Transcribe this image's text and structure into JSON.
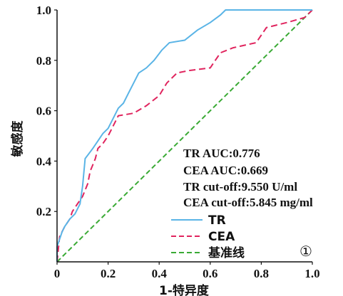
{
  "chart_data": {
    "type": "line",
    "xlabel": "1-特异度",
    "ylabel": "敏感度",
    "xlim": [
      0,
      1
    ],
    "ylim": [
      0,
      1
    ],
    "x_ticks": [
      "0",
      "0.2",
      "0.4",
      "0.6",
      "0.8",
      "1.0"
    ],
    "y_ticks": [
      "0.2",
      "0.4",
      "0.6",
      "0.8",
      "1.0"
    ],
    "grid": false,
    "legend_position": "bottom-right",
    "annotations": [
      "TR AUC:0.776",
      "CEA AUC:0.669",
      "TR cut-off:9.550 U/ml",
      "CEA cut-off:5.845 mg/ml"
    ],
    "panel_label": "①",
    "series": [
      {
        "name": "TR",
        "color": "#5ab4e6",
        "dash": "solid",
        "points": [
          [
            0,
            0
          ],
          [
            0,
            0.06
          ],
          [
            0.01,
            0.09
          ],
          [
            0.02,
            0.12
          ],
          [
            0.03,
            0.14
          ],
          [
            0.05,
            0.17
          ],
          [
            0.07,
            0.19
          ],
          [
            0.09,
            0.23
          ],
          [
            0.1,
            0.3
          ],
          [
            0.11,
            0.41
          ],
          [
            0.14,
            0.45
          ],
          [
            0.16,
            0.48
          ],
          [
            0.18,
            0.51
          ],
          [
            0.2,
            0.53
          ],
          [
            0.22,
            0.57
          ],
          [
            0.24,
            0.61
          ],
          [
            0.26,
            0.63
          ],
          [
            0.28,
            0.67
          ],
          [
            0.3,
            0.71
          ],
          [
            0.32,
            0.75
          ],
          [
            0.35,
            0.77
          ],
          [
            0.38,
            0.8
          ],
          [
            0.41,
            0.84
          ],
          [
            0.44,
            0.87
          ],
          [
            0.5,
            0.88
          ],
          [
            0.55,
            0.92
          ],
          [
            0.6,
            0.95
          ],
          [
            0.64,
            0.98
          ],
          [
            0.66,
            1.0
          ],
          [
            1.0,
            1.0
          ]
        ]
      },
      {
        "name": "CEA",
        "color": "#e0245e",
        "dash": "dashed",
        "points": [
          [
            0,
            0
          ],
          [
            0.01,
            0.1
          ],
          [
            0.03,
            0.14
          ],
          [
            0.05,
            0.17
          ],
          [
            0.06,
            0.2
          ],
          [
            0.08,
            0.23
          ],
          [
            0.1,
            0.26
          ],
          [
            0.12,
            0.31
          ],
          [
            0.13,
            0.36
          ],
          [
            0.15,
            0.41
          ],
          [
            0.16,
            0.45
          ],
          [
            0.18,
            0.47
          ],
          [
            0.2,
            0.5
          ],
          [
            0.22,
            0.54
          ],
          [
            0.24,
            0.58
          ],
          [
            0.3,
            0.59
          ],
          [
            0.35,
            0.62
          ],
          [
            0.4,
            0.66
          ],
          [
            0.43,
            0.71
          ],
          [
            0.45,
            0.73
          ],
          [
            0.47,
            0.75
          ],
          [
            0.52,
            0.76
          ],
          [
            0.6,
            0.77
          ],
          [
            0.64,
            0.83
          ],
          [
            0.69,
            0.85
          ],
          [
            0.78,
            0.87
          ],
          [
            0.82,
            0.93
          ],
          [
            0.9,
            0.95
          ],
          [
            0.97,
            0.97
          ],
          [
            1.0,
            1.0
          ]
        ]
      },
      {
        "name": "基准线",
        "color": "#3aaa35",
        "dash": "dashed",
        "points": [
          [
            0,
            0
          ],
          [
            1,
            1
          ]
        ]
      }
    ]
  }
}
